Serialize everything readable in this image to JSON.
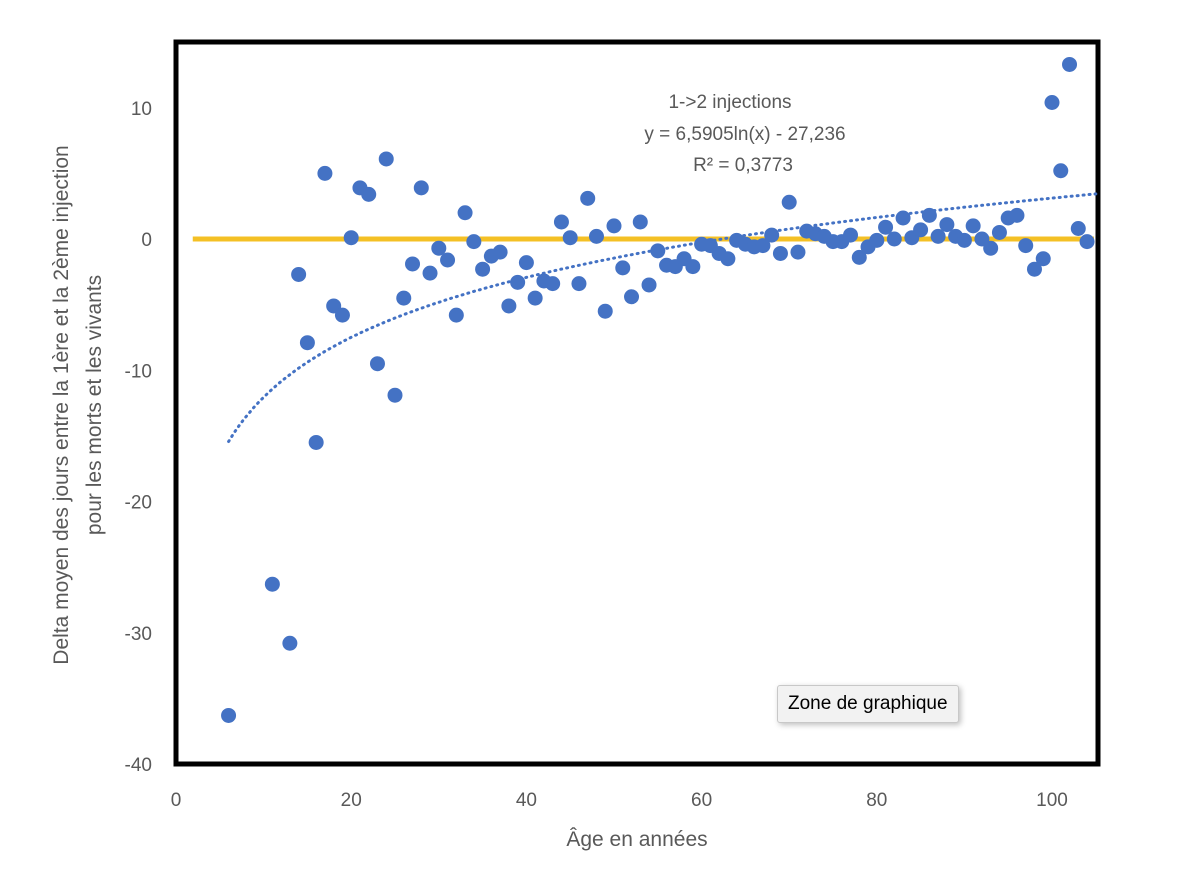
{
  "tooltip": "Zone de graphique",
  "colors": {
    "points": "#4472c4",
    "trend": "#4472c4",
    "reference": "#f4c025",
    "text": "#595959",
    "border": "#000000"
  },
  "chart_data": {
    "type": "scatter",
    "title": "",
    "xlabel": "Âge en années",
    "ylabel_lines": [
      "Delta moyen des jours entre la 1ère et la 2ème injection",
      "pour les morts et les vivants"
    ],
    "xlim": [
      0,
      105
    ],
    "ylim": [
      -40,
      14
    ],
    "xticks": [
      0,
      20,
      40,
      60,
      80,
      100
    ],
    "yticks": [
      -40,
      -30,
      -20,
      -10,
      0,
      10
    ],
    "reference_line": {
      "y": 0,
      "from_x": 1,
      "to_x": 105
    },
    "trendline": {
      "type": "logarithmic",
      "a": 6.5905,
      "b": -27.236,
      "x_range": [
        6,
        105
      ],
      "label_lines": [
        "1->2 injections",
        "y = 6,5905ln(x) - 27,236",
        "R² = 0,3773"
      ]
    },
    "series": [
      {
        "name": "1->2 injections",
        "points": [
          [
            6,
            -36.3
          ],
          [
            11,
            -26.3
          ],
          [
            13,
            -30.8
          ],
          [
            14,
            -2.7
          ],
          [
            15,
            -7.9
          ],
          [
            16,
            -15.5
          ],
          [
            17,
            5.0
          ],
          [
            18,
            -5.1
          ],
          [
            19,
            -5.8
          ],
          [
            20,
            0.1
          ],
          [
            21,
            3.9
          ],
          [
            22,
            3.4
          ],
          [
            23,
            -9.5
          ],
          [
            24,
            6.1
          ],
          [
            25,
            -11.9
          ],
          [
            26,
            -4.5
          ],
          [
            27,
            -1.9
          ],
          [
            28,
            3.9
          ],
          [
            29,
            -2.6
          ],
          [
            30,
            -0.7
          ],
          [
            31,
            -1.6
          ],
          [
            32,
            -5.8
          ],
          [
            33,
            2.0
          ],
          [
            34,
            -0.2
          ],
          [
            35,
            -2.3
          ],
          [
            36,
            -1.3
          ],
          [
            37,
            -1.0
          ],
          [
            38,
            -5.1
          ],
          [
            39,
            -3.3
          ],
          [
            40,
            -1.8
          ],
          [
            41,
            -4.5
          ],
          [
            42,
            -3.2
          ],
          [
            43,
            -3.4
          ],
          [
            44,
            1.3
          ],
          [
            45,
            0.1
          ],
          [
            46,
            -3.4
          ],
          [
            47,
            3.1
          ],
          [
            48,
            0.2
          ],
          [
            49,
            -5.5
          ],
          [
            50,
            1.0
          ],
          [
            51,
            -2.2
          ],
          [
            52,
            -4.4
          ],
          [
            53,
            1.3
          ],
          [
            54,
            -3.5
          ],
          [
            55,
            -0.9
          ],
          [
            56,
            -2.0
          ],
          [
            57,
            -2.1
          ],
          [
            58,
            -1.5
          ],
          [
            59,
            -2.1
          ],
          [
            60,
            -0.4
          ],
          [
            61,
            -0.5
          ],
          [
            62,
            -1.1
          ],
          [
            63,
            -1.5
          ],
          [
            64,
            -0.1
          ],
          [
            65,
            -0.4
          ],
          [
            66,
            -0.6
          ],
          [
            67,
            -0.5
          ],
          [
            68,
            0.3
          ],
          [
            69,
            -1.1
          ],
          [
            70,
            2.8
          ],
          [
            71,
            -1.0
          ],
          [
            72,
            0.6
          ],
          [
            73,
            0.4
          ],
          [
            74,
            0.2
          ],
          [
            75,
            -0.2
          ],
          [
            76,
            -0.2
          ],
          [
            77,
            0.3
          ],
          [
            78,
            -1.4
          ],
          [
            79,
            -0.6
          ],
          [
            80,
            -0.1
          ],
          [
            81,
            0.9
          ],
          [
            82,
            0.0
          ],
          [
            83,
            1.6
          ],
          [
            84,
            0.1
          ],
          [
            85,
            0.7
          ],
          [
            86,
            1.8
          ],
          [
            87,
            0.2
          ],
          [
            88,
            1.1
          ],
          [
            89,
            0.2
          ],
          [
            90,
            -0.1
          ],
          [
            91,
            1.0
          ],
          [
            92,
            0.0
          ],
          [
            93,
            -0.7
          ],
          [
            94,
            0.5
          ],
          [
            95,
            1.6
          ],
          [
            96,
            1.8
          ],
          [
            97,
            -0.5
          ],
          [
            98,
            -2.3
          ],
          [
            99,
            -1.5
          ],
          [
            100,
            10.4
          ],
          [
            101,
            5.2
          ],
          [
            102,
            13.3
          ],
          [
            103,
            0.8
          ],
          [
            104,
            -0.2
          ]
        ]
      }
    ]
  }
}
